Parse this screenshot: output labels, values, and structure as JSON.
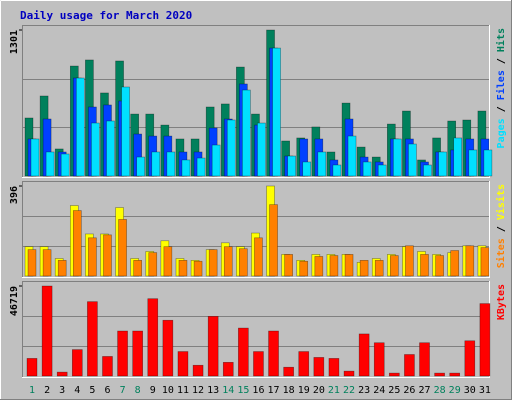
{
  "chart_data": [
    {
      "type": "bar",
      "title": "Daily usage for March 2020",
      "legend_separator": " / ",
      "ylim": [
        0,
        1301
      ],
      "yticks": [
        1301
      ],
      "grid": true,
      "series": [
        {
          "name": "Hits",
          "color": "#00805c",
          "values": [
            517,
            713,
            241,
            980,
            1034,
            740,
            1025,
            552,
            552,
            454,
            330,
            330,
            615,
            642,
            971,
            552,
            1301,
            312,
            339,
            437,
            214,
            650,
            258,
            169,
            463,
            579,
            143,
            339,
            490,
            499,
            579
          ]
        },
        {
          "name": "Files",
          "color": "#0040ff",
          "values": [
            330,
            508,
            214,
            873,
            615,
            633,
            668,
            374,
            356,
            356,
            214,
            214,
            428,
            508,
            820,
            454,
            1140,
            178,
            330,
            330,
            143,
            508,
            169,
            125,
            330,
            330,
            125,
            214,
            232,
            330,
            330
          ]
        },
        {
          "name": "Pages",
          "color": "#00e0ff",
          "values": [
            330,
            214,
            196,
            873,
            472,
            490,
            793,
            169,
            214,
            214,
            143,
            160,
            276,
            499,
            766,
            472,
            1140,
            178,
            125,
            214,
            98,
            356,
            125,
            98,
            330,
            285,
            98,
            214,
            339,
            232,
            232
          ]
        }
      ]
    },
    {
      "type": "bar",
      "ylim": [
        0,
        396
      ],
      "yticks": [
        396
      ],
      "grid": true,
      "series": [
        {
          "name": "Visits",
          "color": "#ffff00",
          "values": [
            129,
            129,
            77,
            310,
            185,
            185,
            301,
            77,
            108,
            155,
            77,
            69,
            116,
            146,
            129,
            189,
            396,
            95,
            69,
            95,
            95,
            95,
            60,
            77,
            95,
            129,
            108,
            95,
            103,
            133,
            133
          ]
        },
        {
          "name": "Sites",
          "color": "#ff8000",
          "values": [
            116,
            116,
            69,
            288,
            168,
            181,
            249,
            69,
            103,
            129,
            69,
            65,
            116,
            129,
            120,
            168,
            314,
            95,
            65,
            86,
            90,
            95,
            69,
            69,
            90,
            133,
            95,
            90,
            112,
            133,
            125
          ]
        }
      ]
    },
    {
      "type": "bar",
      "ylim": [
        0,
        46719
      ],
      "yticks": [
        46719
      ],
      "grid": true,
      "categories": [
        "1",
        "2",
        "3",
        "4",
        "5",
        "6",
        "7",
        "8",
        "9",
        "10",
        "11",
        "12",
        "13",
        "14",
        "15",
        "16",
        "17",
        "18",
        "19",
        "20",
        "21",
        "22",
        "23",
        "24",
        "25",
        "26",
        "27",
        "28",
        "29",
        "30",
        "31"
      ],
      "category_colors": [
        "#00805c",
        "#000000",
        "#000000",
        "#000000",
        "#000000",
        "#000000",
        "#00805c",
        "#00805c",
        "#000000",
        "#000000",
        "#000000",
        "#000000",
        "#000000",
        "#00805c",
        "#00805c",
        "#000000",
        "#000000",
        "#000000",
        "#000000",
        "#000000",
        "#00805c",
        "#00805c",
        "#000000",
        "#000000",
        "#000000",
        "#000000",
        "#000000",
        "#00805c",
        "#00805c",
        "#000000",
        "#000000"
      ],
      "series": [
        {
          "name": "KBytes",
          "color": "#ff0000",
          "values": [
            9140,
            46719,
            2030,
            13710,
            38600,
            10160,
            23360,
            23360,
            40130,
            28950,
            12700,
            5590,
            30980,
            7110,
            24890,
            12700,
            23360,
            4570,
            12700,
            9650,
            9140,
            2540,
            21840,
            17270,
            1520,
            11170,
            17270,
            1520,
            1520,
            18290,
            37590
          ]
        }
      ]
    }
  ]
}
